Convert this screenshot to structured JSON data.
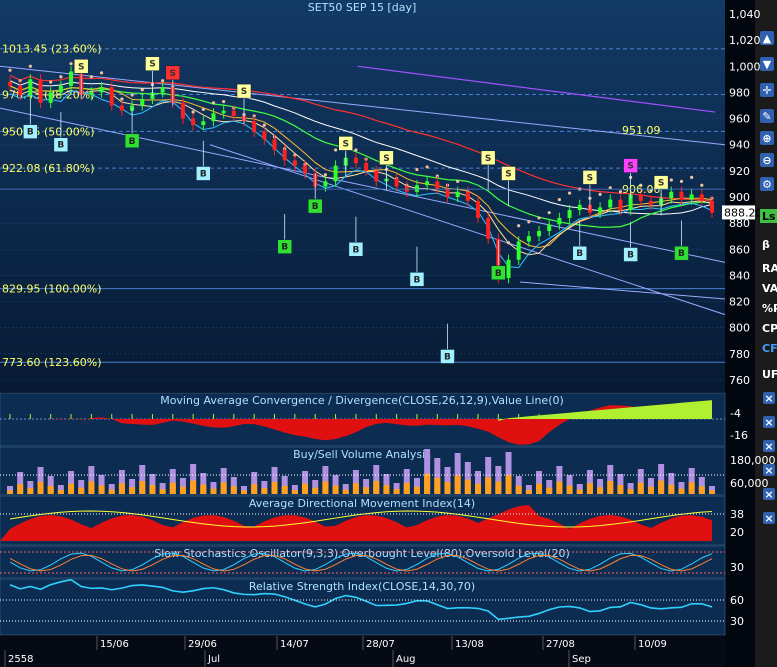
{
  "window": {
    "title": "SET50 SEP 15   [day]"
  },
  "chart_data": {
    "type": "candlestick",
    "title": "SET50 SEP 15   [day]",
    "price_axis": {
      "ticks": [
        "1,040",
        "1,020",
        "1,000",
        "980",
        "960",
        "940",
        "920",
        "900",
        "880",
        "860",
        "840",
        "820",
        "800",
        "780",
        "760"
      ],
      "range": [
        750,
        1045
      ]
    },
    "last_price": "888.20",
    "annotation_951": "951.09",
    "annotation_906": "906.00",
    "fib_levels": [
      {
        "label": "1013.45 (23.60%)",
        "value": 1013.45
      },
      {
        "label": "978.43 (38.20%)",
        "value": 978.43
      },
      {
        "label": "950.25 (50.00%)",
        "value": 950.25
      },
      {
        "label": "922.08 (61.80%)",
        "value": 922.08
      },
      {
        "label": "829.95 (100.00%)",
        "value": 829.95
      },
      {
        "label": "773.60 (123.60%)",
        "value": 773.6
      }
    ],
    "dates": [
      "15/06",
      "29/06",
      "14/07",
      "28/07",
      "13/08",
      "27/08",
      "10/09"
    ],
    "months": [
      "2558",
      "Jul",
      "Aug",
      "Sep"
    ],
    "closes": [
      985,
      978,
      990,
      972,
      980,
      985,
      996,
      978,
      980,
      984,
      970,
      966,
      970,
      975,
      980,
      984,
      972,
      960,
      955,
      958,
      964,
      966,
      962,
      958,
      950,
      944,
      936,
      928,
      924,
      918,
      908,
      912,
      924,
      930,
      926,
      920,
      912,
      914,
      908,
      904,
      909,
      912,
      906,
      900,
      904,
      897,
      884,
      868,
      838,
      852,
      866,
      870,
      874,
      879,
      884,
      890,
      894,
      888,
      892,
      898,
      890,
      902,
      897,
      894,
      899,
      904,
      898,
      902,
      897,
      888
    ],
    "indicators": [
      {
        "name": "Moving Average Convergence / Divergence(CLOSE,26,12,9),Value Line(0)",
        "ticks": [
          "-4",
          "-16"
        ]
      },
      {
        "name": "Buy/Sell Volume Analysis",
        "ticks": [
          "180,000",
          "60,000"
        ]
      },
      {
        "name": "Average Directional Movement Index(14)",
        "ticks": [
          "38",
          "20"
        ]
      },
      {
        "name": "Slow Stochastics Oscillator(9,3,3),Overbought Level(80),Oversold Level(20)",
        "ticks": [
          "30"
        ]
      },
      {
        "name": "Relative Strength Index(CLOSE,14,30,70)",
        "ticks": [
          "60",
          "30"
        ]
      }
    ],
    "signals": [
      {
        "t": "S",
        "i": 7,
        "price": 1000
      },
      {
        "t": "S",
        "i": 14,
        "price": 1002
      },
      {
        "t": "S",
        "i": 16,
        "price": 995
      },
      {
        "t": "S",
        "i": 23,
        "price": 981
      },
      {
        "t": "S",
        "i": 33,
        "price": 941
      },
      {
        "t": "S",
        "i": 37,
        "price": 930
      },
      {
        "t": "S",
        "i": 47,
        "price": 930
      },
      {
        "t": "S",
        "i": 49,
        "price": 918
      },
      {
        "t": "S",
        "i": 57,
        "price": 915
      },
      {
        "t": "S",
        "i": 61,
        "price": 924
      },
      {
        "t": "S",
        "i": 64,
        "price": 911
      },
      {
        "t": "B",
        "i": 2,
        "price": 950
      },
      {
        "t": "B",
        "i": 5,
        "price": 940
      },
      {
        "t": "B",
        "i": 12,
        "price": 943
      },
      {
        "t": "B",
        "i": 19,
        "price": 918
      },
      {
        "t": "B",
        "i": 27,
        "price": 862
      },
      {
        "t": "B",
        "i": 30,
        "price": 893
      },
      {
        "t": "B",
        "i": 34,
        "price": 860
      },
      {
        "t": "B",
        "i": 40,
        "price": 837
      },
      {
        "t": "B",
        "i": 43,
        "price": 778
      },
      {
        "t": "B",
        "i": 48,
        "price": 842
      },
      {
        "t": "B",
        "i": 56,
        "price": 857
      },
      {
        "t": "B",
        "i": 61,
        "price": 856
      },
      {
        "t": "B",
        "i": 66,
        "price": 857
      }
    ]
  },
  "toolbar": {
    "buttons": [
      "arrow-up",
      "arrow-down",
      "crosshair",
      "zoom-in",
      "zoom-out",
      "settings",
      "Ls"
    ],
    "labels": [
      "β",
      "RA",
      "VA",
      "%P",
      "CP",
      "CF",
      "UF"
    ]
  }
}
